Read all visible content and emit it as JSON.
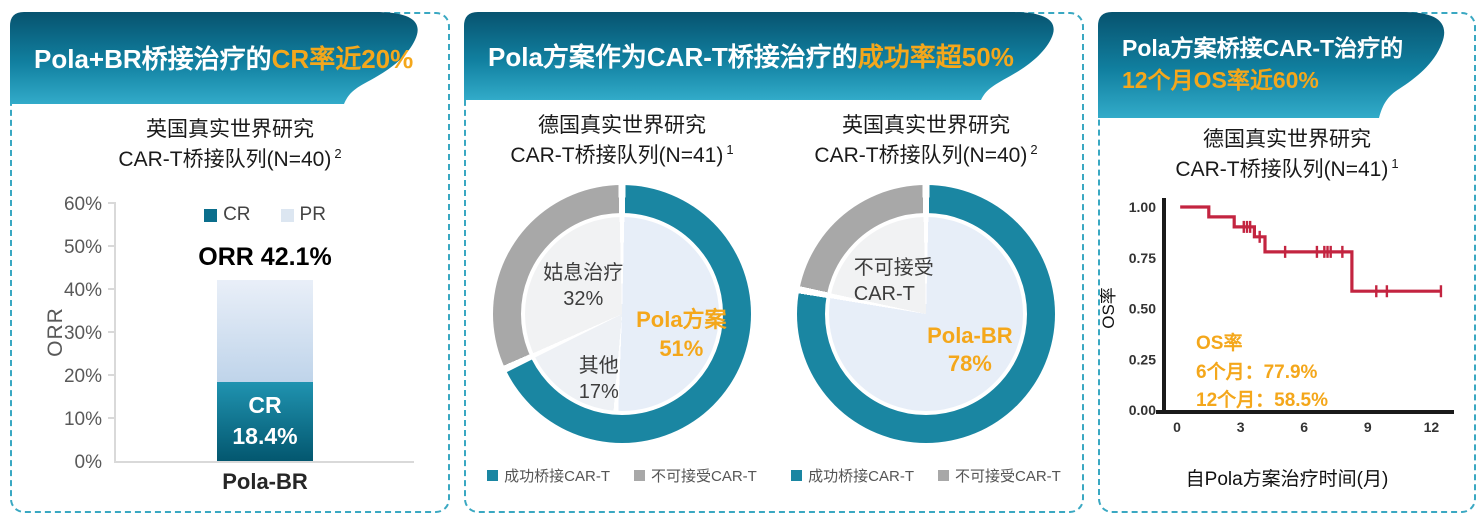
{
  "colors": {
    "band_top": "#07536f",
    "band_mid": "#1180a0",
    "band_bottom": "#32abc9",
    "gold": "#f4a71b",
    "teal": "#1a86a2",
    "teal_dark": "#0b6e8c",
    "bar_cr_top": "#2093b0",
    "bar_cr_bottom": "#03576f",
    "bar_pr_top": "#e9eff8",
    "bar_pr_bottom": "#bfd4ea",
    "slice_blue": "#e7eef8",
    "slice_blue_alt": "#eef1f5",
    "slice_gray": "#f1f2f3",
    "ring_gray": "#a8a8a8",
    "legend_pr": "#dce6f1",
    "km_red": "#c32440",
    "dash_border": "#3aa8c2",
    "tick_gray": "#595959",
    "text_dark": "#1a1a1a",
    "axis_light": "#d9d9d9"
  },
  "panel1": {
    "title_white": "Pola+BR桥接治疗的",
    "title_gold": "CR率近20%",
    "subtitle_line1": "英国真实世界研究",
    "subtitle_line2": "CAR-T桥接队列(N=40)",
    "subtitle_sup": "2"
  },
  "panel2": {
    "title_white": "Pola方案作为CAR-T桥接治疗的",
    "title_gold": "成功率超50%",
    "left": {
      "subtitle_line1": "德国真实世界研究",
      "subtitle_line2": "CAR-T桥接队列(N=41)",
      "subtitle_sup": "1"
    },
    "right": {
      "subtitle_line1": "英国真实世界研究",
      "subtitle_line2": "CAR-T桥接队列(N=40)",
      "subtitle_sup": "2"
    }
  },
  "panel3": {
    "title_white": "Pola方案桥接CAR-T治疗的",
    "title_gold": "12个月OS率近60%",
    "subtitle_line1": "德国真实世界研究",
    "subtitle_line2": "CAR-T桥接队列(N=41)",
    "subtitle_sup": "1"
  },
  "chart_data": [
    {
      "type": "bar",
      "stacked": true,
      "categories": [
        "Pola-BR"
      ],
      "series": [
        {
          "name": "CR",
          "values": [
            18.4
          ],
          "display": "18.4%"
        },
        {
          "name": "PR",
          "values": [
            23.7
          ],
          "display": "23.7%"
        }
      ],
      "total_label": "ORR 42.1%",
      "ylabel": "ORR",
      "ylim": [
        0,
        60
      ],
      "ytick_step": 10,
      "ytick_suffix": "%"
    },
    {
      "type": "pie",
      "title": "德国真实世界研究 CAR-T桥接队列(N=41)",
      "slices": [
        {
          "label": "Pola方案",
          "value": 51,
          "display": "51%"
        },
        {
          "label": "其他",
          "value": 17,
          "display": "17%"
        },
        {
          "label": "姑息治疗",
          "value": 32,
          "display": "32%"
        }
      ],
      "ring": [
        {
          "label": "成功桥接CAR-T",
          "value": 68
        },
        {
          "label": "不可接受CAR-T",
          "value": 32
        }
      ]
    },
    {
      "type": "pie",
      "title": "英国真实世界研究 CAR-T桥接队列(N=40)",
      "slices": [
        {
          "label": "Pola-BR",
          "value": 78,
          "display": "78%"
        },
        {
          "label": "不可接受CAR-T",
          "value": 22,
          "display_lines": [
            "不可接受",
            "CAR-T"
          ]
        }
      ],
      "ring": [
        {
          "label": "成功桥接CAR-T",
          "value": 78
        },
        {
          "label": "不可接受CAR-T",
          "value": 22
        }
      ]
    },
    {
      "type": "line",
      "subtype": "kaplan-meier",
      "xlabel": "自Pola方案治疗时间(月)",
      "ylabel": "OS率",
      "xlim": [
        0,
        13
      ],
      "ylim": [
        0,
        1
      ],
      "xticks": [
        0,
        3,
        6,
        9,
        12
      ],
      "yticks": [
        "0.00",
        "0.25",
        "0.50",
        "0.75",
        "1.00"
      ],
      "steps": [
        [
          0.15,
          1.0
        ],
        [
          1.5,
          0.951
        ],
        [
          2.7,
          0.902
        ],
        [
          3.65,
          0.853
        ],
        [
          4.15,
          0.779
        ],
        [
          8.25,
          0.585
        ],
        [
          12.45,
          0.585
        ]
      ],
      "censor_marks": [
        [
          3.15,
          0.902
        ],
        [
          3.3,
          0.902
        ],
        [
          3.45,
          0.902
        ],
        [
          3.9,
          0.853
        ],
        [
          5.1,
          0.779
        ],
        [
          6.6,
          0.779
        ],
        [
          6.95,
          0.779
        ],
        [
          7.1,
          0.779
        ],
        [
          7.25,
          0.779
        ],
        [
          7.8,
          0.779
        ],
        [
          9.4,
          0.585
        ],
        [
          9.9,
          0.585
        ],
        [
          12.45,
          0.585
        ]
      ],
      "annotation": {
        "title": "OS率",
        "line1": "6个月：77.9%",
        "line2": "12个月：58.5%"
      }
    }
  ]
}
